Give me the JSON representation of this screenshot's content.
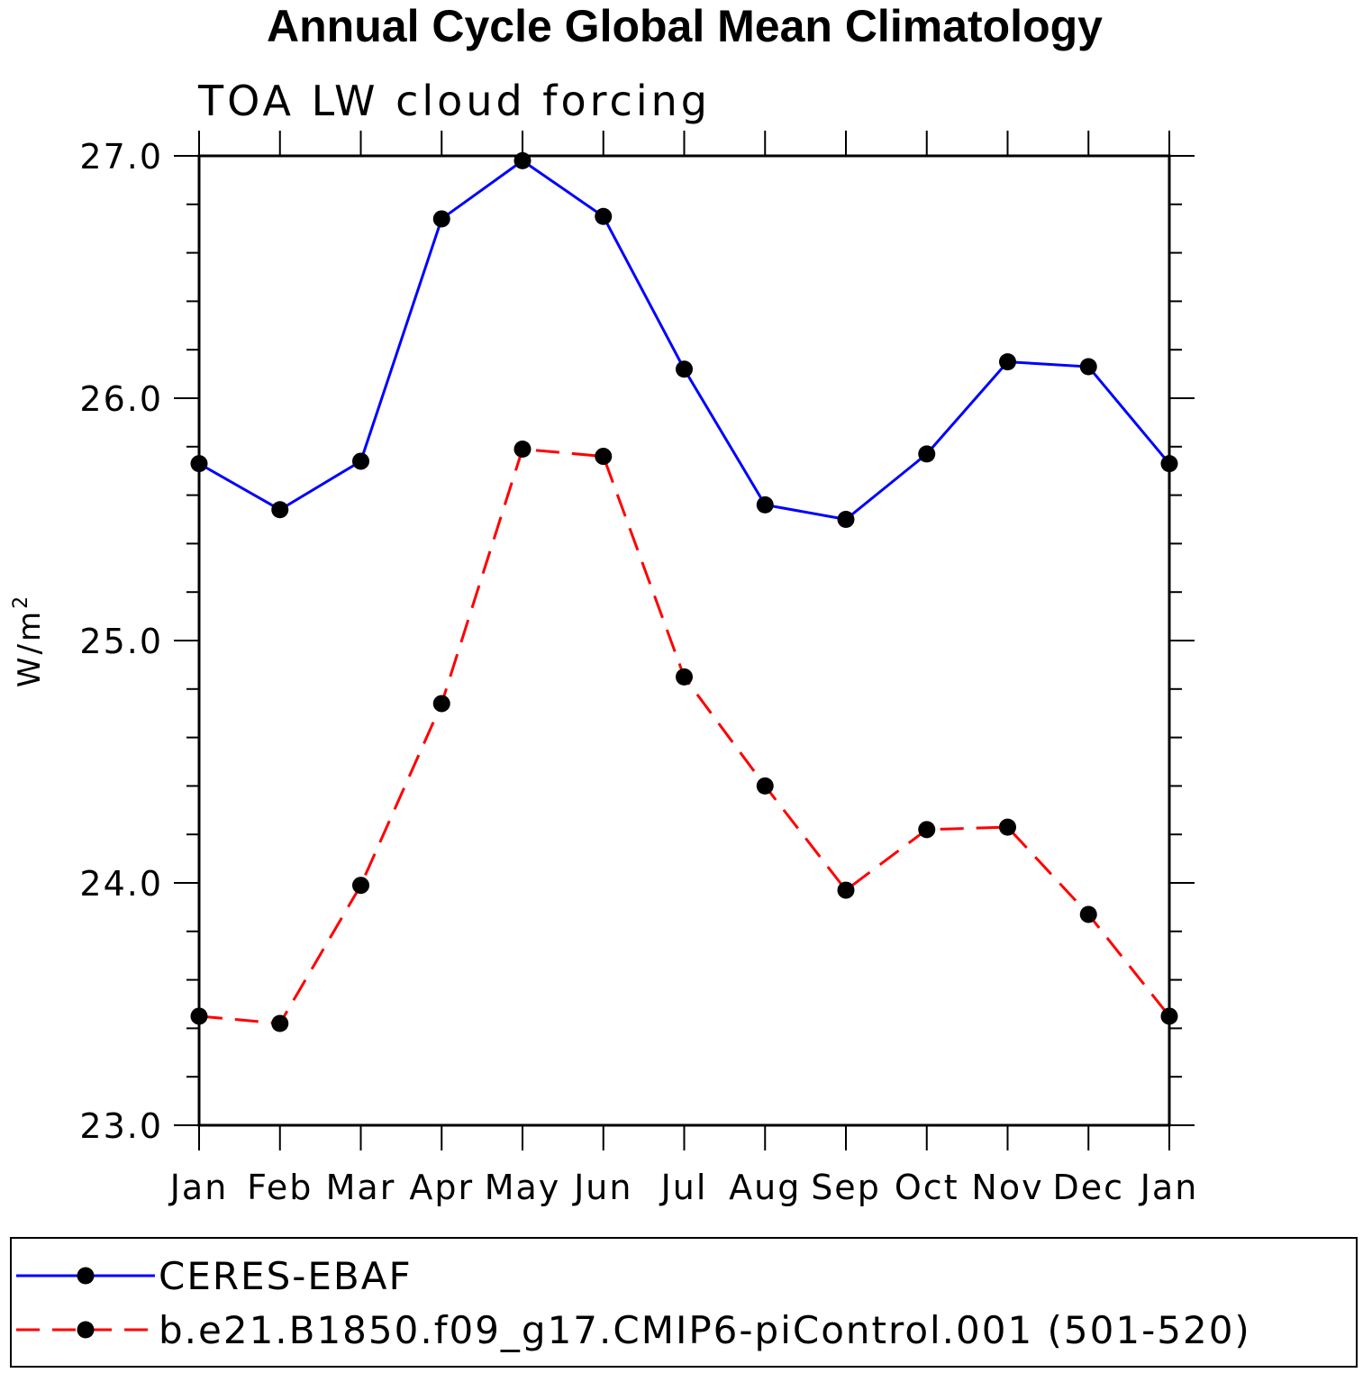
{
  "chart_data": {
    "type": "line",
    "title": "Annual Cycle Global Mean Climatology",
    "subtitle": "TOA LW cloud forcing",
    "ylabel": "W/m",
    "ylabel_superscript": "2",
    "xlabel": "",
    "categories": [
      "Jan",
      "Feb",
      "Mar",
      "Apr",
      "May",
      "Jun",
      "Jul",
      "Aug",
      "Sep",
      "Oct",
      "Nov",
      "Dec",
      "Jan"
    ],
    "ylim": [
      23.0,
      27.0
    ],
    "yticks": [
      "23.0",
      "24.0",
      "25.0",
      "26.0",
      "27.0"
    ],
    "grid": false,
    "legend_position": "bottom",
    "series": [
      {
        "name": "CERES-EBAF",
        "color": "#0000ff",
        "dash": "solid",
        "values": [
          25.73,
          25.54,
          25.74,
          26.74,
          26.98,
          26.75,
          26.12,
          25.56,
          25.5,
          25.77,
          26.15,
          26.13,
          25.73
        ]
      },
      {
        "name": "b.e21.B1850.f09_g17.CMIP6-piControl.001 (501-520)",
        "color": "#ff0000",
        "dash": "dashed",
        "values": [
          23.45,
          23.42,
          23.99,
          24.74,
          25.79,
          25.76,
          24.85,
          24.4,
          23.97,
          24.22,
          24.23,
          23.87,
          23.45
        ]
      }
    ]
  }
}
